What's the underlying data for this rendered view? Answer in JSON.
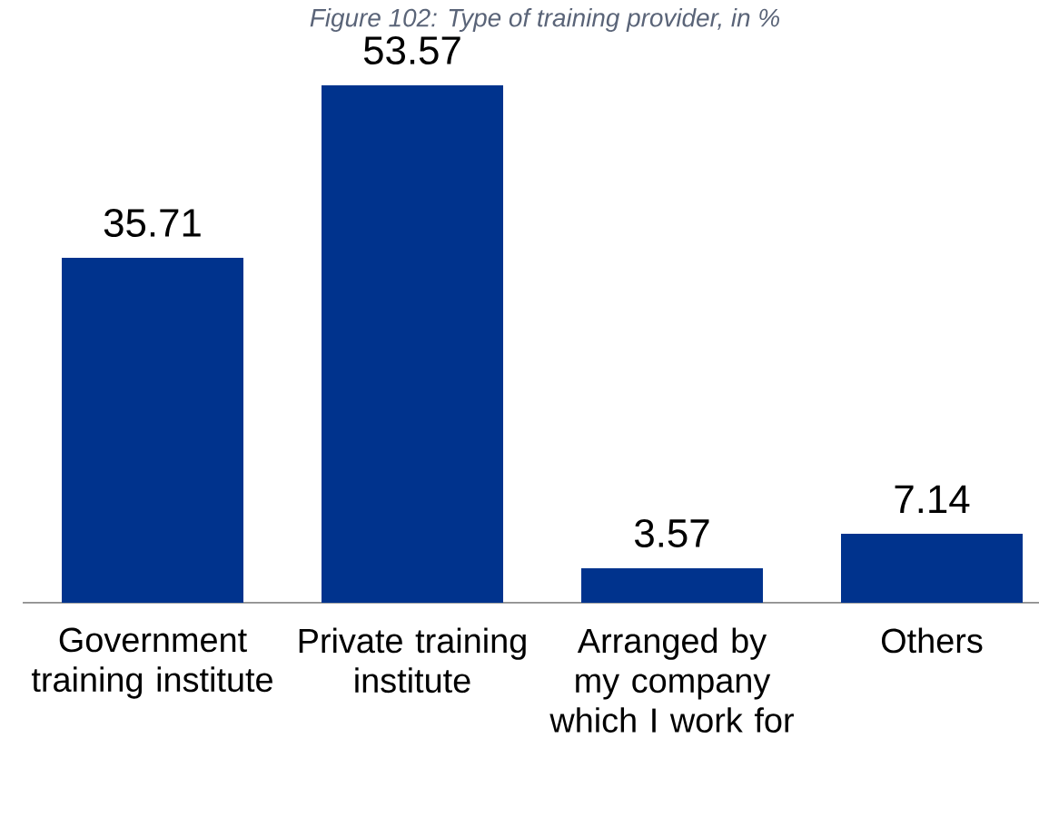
{
  "chart_data": {
    "type": "bar",
    "title": "Figure 102: Type of training provider, in %",
    "categories": [
      "Government training institute",
      "Private training institute",
      "Arranged by my company which I work for",
      "Others"
    ],
    "values": [
      35.71,
      53.57,
      3.57,
      7.14
    ],
    "color": "#00338d",
    "data_labels": true,
    "grid": false,
    "tick_labels": "x"
  }
}
